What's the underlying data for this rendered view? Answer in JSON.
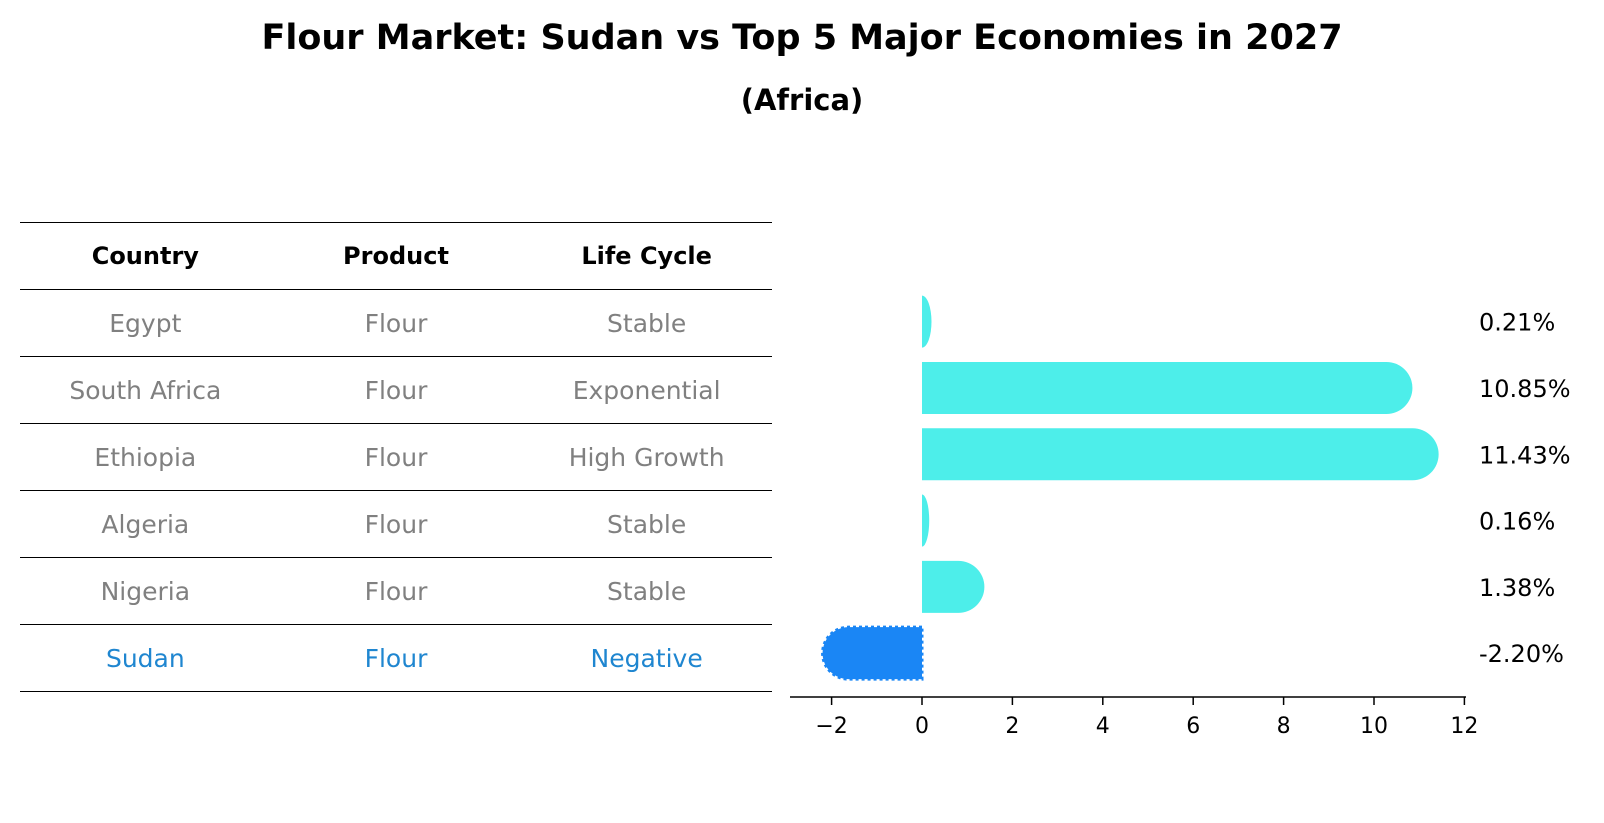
{
  "chart_data": {
    "type": "bar",
    "orientation": "horizontal",
    "title": "Flour Market: Sudan vs Top 5 Major Economies in 2027",
    "subtitle": "(Africa)",
    "categories": [
      "Egypt",
      "South Africa",
      "Ethiopia",
      "Algeria",
      "Nigeria",
      "Sudan"
    ],
    "values": [
      0.21,
      10.85,
      11.43,
      0.16,
      1.38,
      -2.2
    ],
    "value_labels": [
      "0.21%",
      "10.85%",
      "11.43%",
      "0.16%",
      "1.38%",
      "-2.20%"
    ],
    "xlim": [
      -2.9,
      12.1
    ],
    "xticks": [
      -2,
      0,
      2,
      4,
      6,
      8,
      10,
      12
    ],
    "xtick_labels": [
      "−2",
      "0",
      "2",
      "4",
      "6",
      "8",
      "10",
      "12"
    ],
    "xlabel": "",
    "ylabel": "",
    "grid": false,
    "highlight_category": "Sudan",
    "colors": {
      "bar": "#4deeea",
      "highlight_bar": "#1a86f5",
      "highlight_text": "#1f86d0",
      "muted_text": "#808080"
    }
  },
  "table": {
    "headers": [
      "Country",
      "Product",
      "Life Cycle"
    ],
    "rows": [
      [
        "Egypt",
        "Flour",
        "Stable"
      ],
      [
        "South Africa",
        "Flour",
        "Exponential"
      ],
      [
        "Ethiopia",
        "Flour",
        "High Growth"
      ],
      [
        "Algeria",
        "Flour",
        "Stable"
      ],
      [
        "Nigeria",
        "Flour",
        "Stable"
      ],
      [
        "Sudan",
        "Flour",
        "Negative"
      ]
    ],
    "highlight_row": 5
  }
}
